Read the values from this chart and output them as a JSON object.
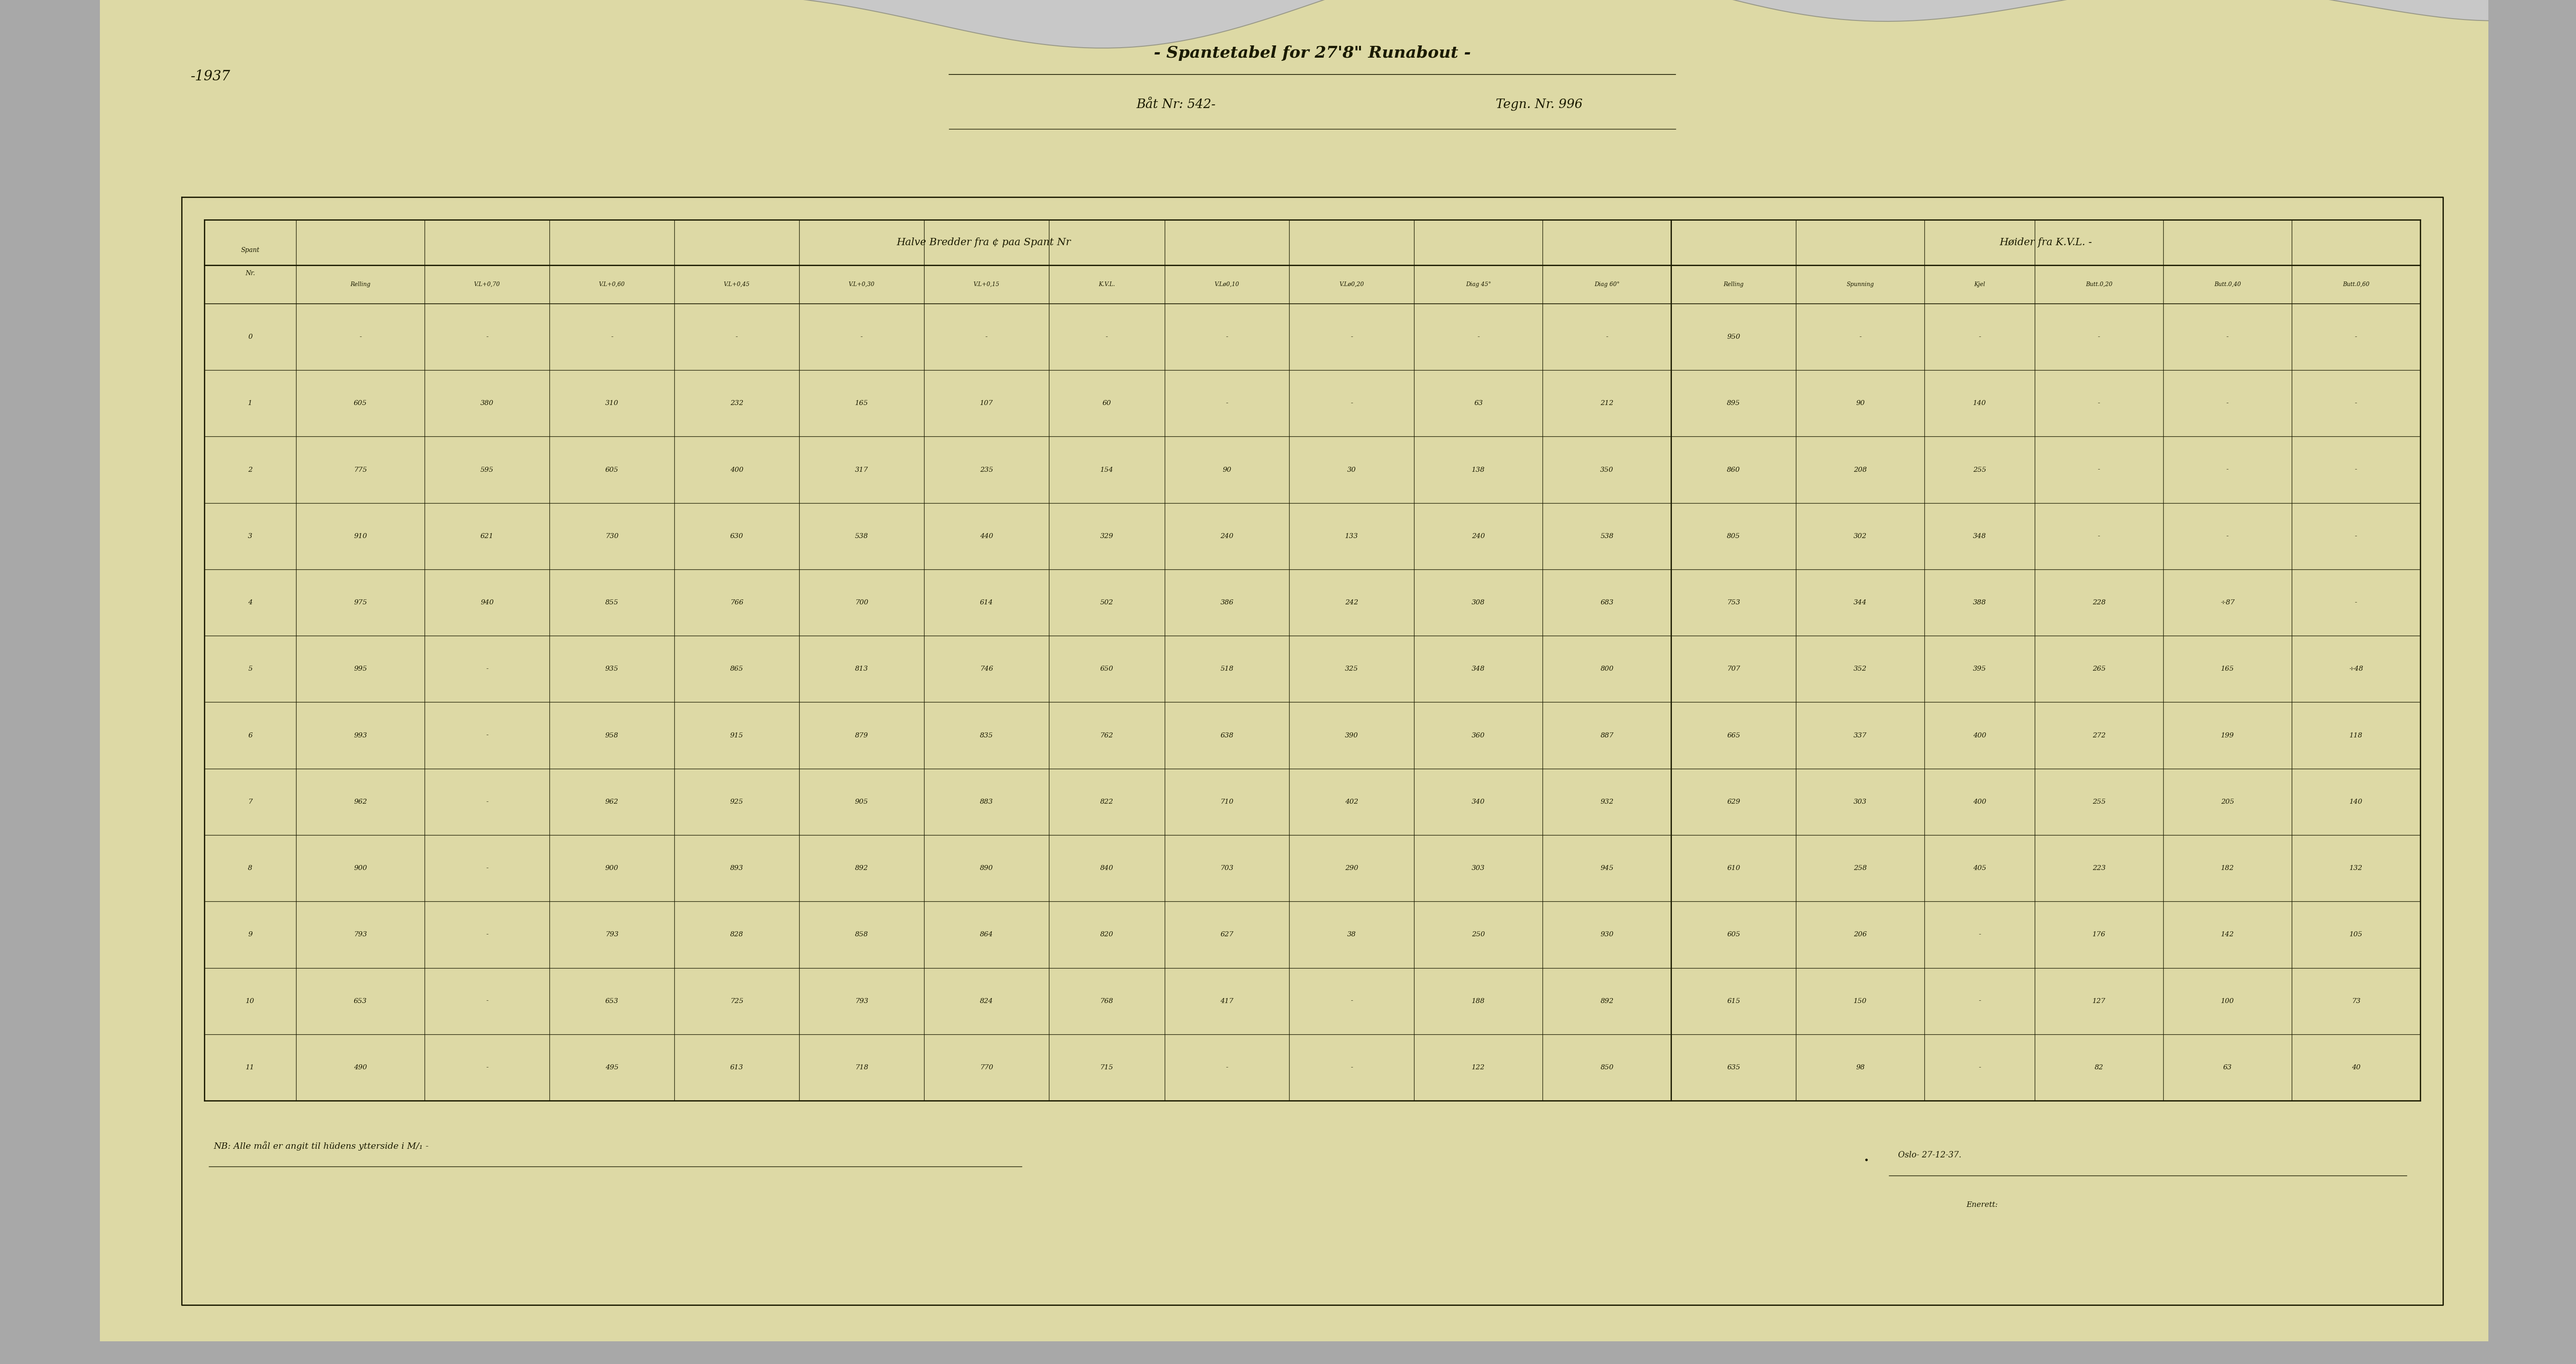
{
  "bg_color": "#a8a8a8",
  "paper_color": "#ddd9a5",
  "title_line1": "- Spantetabel for 27'8\" Runabout -",
  "title_line2_left": "Båt Nr: 542-",
  "title_line2_right": "Tegn. Nr. 996",
  "year_label": "-1937",
  "header_left": "Halve Bredder fra ¢ paa Spant Nr",
  "header_right": "Høider fra K.V.L. -",
  "col_header_labels": [
    "",
    "Relling",
    "V.L+0,70",
    "V.L+0,60",
    "V.L+0,45",
    "V.L+0,30",
    "V.L+0,15",
    "K.V.L.",
    "V.Lø0,10",
    "V.Lø0,20",
    "Diag 45°",
    "Diag 60°",
    "Relling",
    "Spunning",
    "Kjel",
    "Butt.0,20",
    "Butt.0,40",
    "Butt.0,60"
  ],
  "rows": [
    [
      "0",
      "-",
      "-",
      "-",
      "-",
      "-",
      "-",
      "-",
      "-",
      "-",
      "-",
      "-",
      "950",
      "-",
      "-",
      "-",
      "-",
      "-"
    ],
    [
      "1",
      "605",
      "380",
      "310",
      "232",
      "165",
      "107",
      "60",
      "-",
      "-",
      "63",
      "212",
      "895",
      "90",
      "140",
      "-",
      "-",
      "-"
    ],
    [
      "2",
      "775",
      "595",
      "605",
      "400",
      "317",
      "235",
      "154",
      "90",
      "30",
      "138",
      "350",
      "860",
      "208",
      "255",
      "-",
      "-",
      "-"
    ],
    [
      "3",
      "910",
      "621",
      "730",
      "630",
      "538",
      "440",
      "329",
      "240",
      "133",
      "240",
      "538",
      "805",
      "302",
      "348",
      "-",
      "-",
      "-"
    ],
    [
      "4",
      "975",
      "940",
      "855",
      "766",
      "700",
      "614",
      "502",
      "386",
      "242",
      "308",
      "683",
      "753",
      "344",
      "388",
      "228",
      "÷87",
      "-"
    ],
    [
      "5",
      "995",
      "-",
      "935",
      "865",
      "813",
      "746",
      "650",
      "518",
      "325",
      "348",
      "800",
      "707",
      "352",
      "395",
      "265",
      "165",
      "÷48"
    ],
    [
      "6",
      "993",
      "-",
      "958",
      "915",
      "879",
      "835",
      "762",
      "638",
      "390",
      "360",
      "887",
      "665",
      "337",
      "400",
      "272",
      "199",
      "118"
    ],
    [
      "7",
      "962",
      "-",
      "962",
      "925",
      "905",
      "883",
      "822",
      "710",
      "402",
      "340",
      "932",
      "629",
      "303",
      "400",
      "255",
      "205",
      "140"
    ],
    [
      "8",
      "900",
      "-",
      "900",
      "893",
      "892",
      "890",
      "840",
      "703",
      "290",
      "303",
      "945",
      "610",
      "258",
      "405",
      "223",
      "182",
      "132"
    ],
    [
      "9",
      "793",
      "-",
      "793",
      "828",
      "858",
      "864",
      "820",
      "627",
      "38",
      "250",
      "930",
      "605",
      "206",
      "-",
      "176",
      "142",
      "105"
    ],
    [
      "10",
      "653",
      "-",
      "653",
      "725",
      "793",
      "824",
      "768",
      "417",
      "-",
      "188",
      "892",
      "615",
      "150",
      "-",
      "127",
      "100",
      "73"
    ],
    [
      "11",
      "490",
      "-",
      "495",
      "613",
      "718",
      "770",
      "715",
      "-",
      "-",
      "122",
      "850",
      "635",
      "98",
      "-",
      "82",
      "63",
      "40"
    ]
  ],
  "note": "NB: Alle mål er angit til hüdens ytterside i M/₁ -",
  "date": "Oslo- 27-12-37.",
  "signed": "Enerett:"
}
